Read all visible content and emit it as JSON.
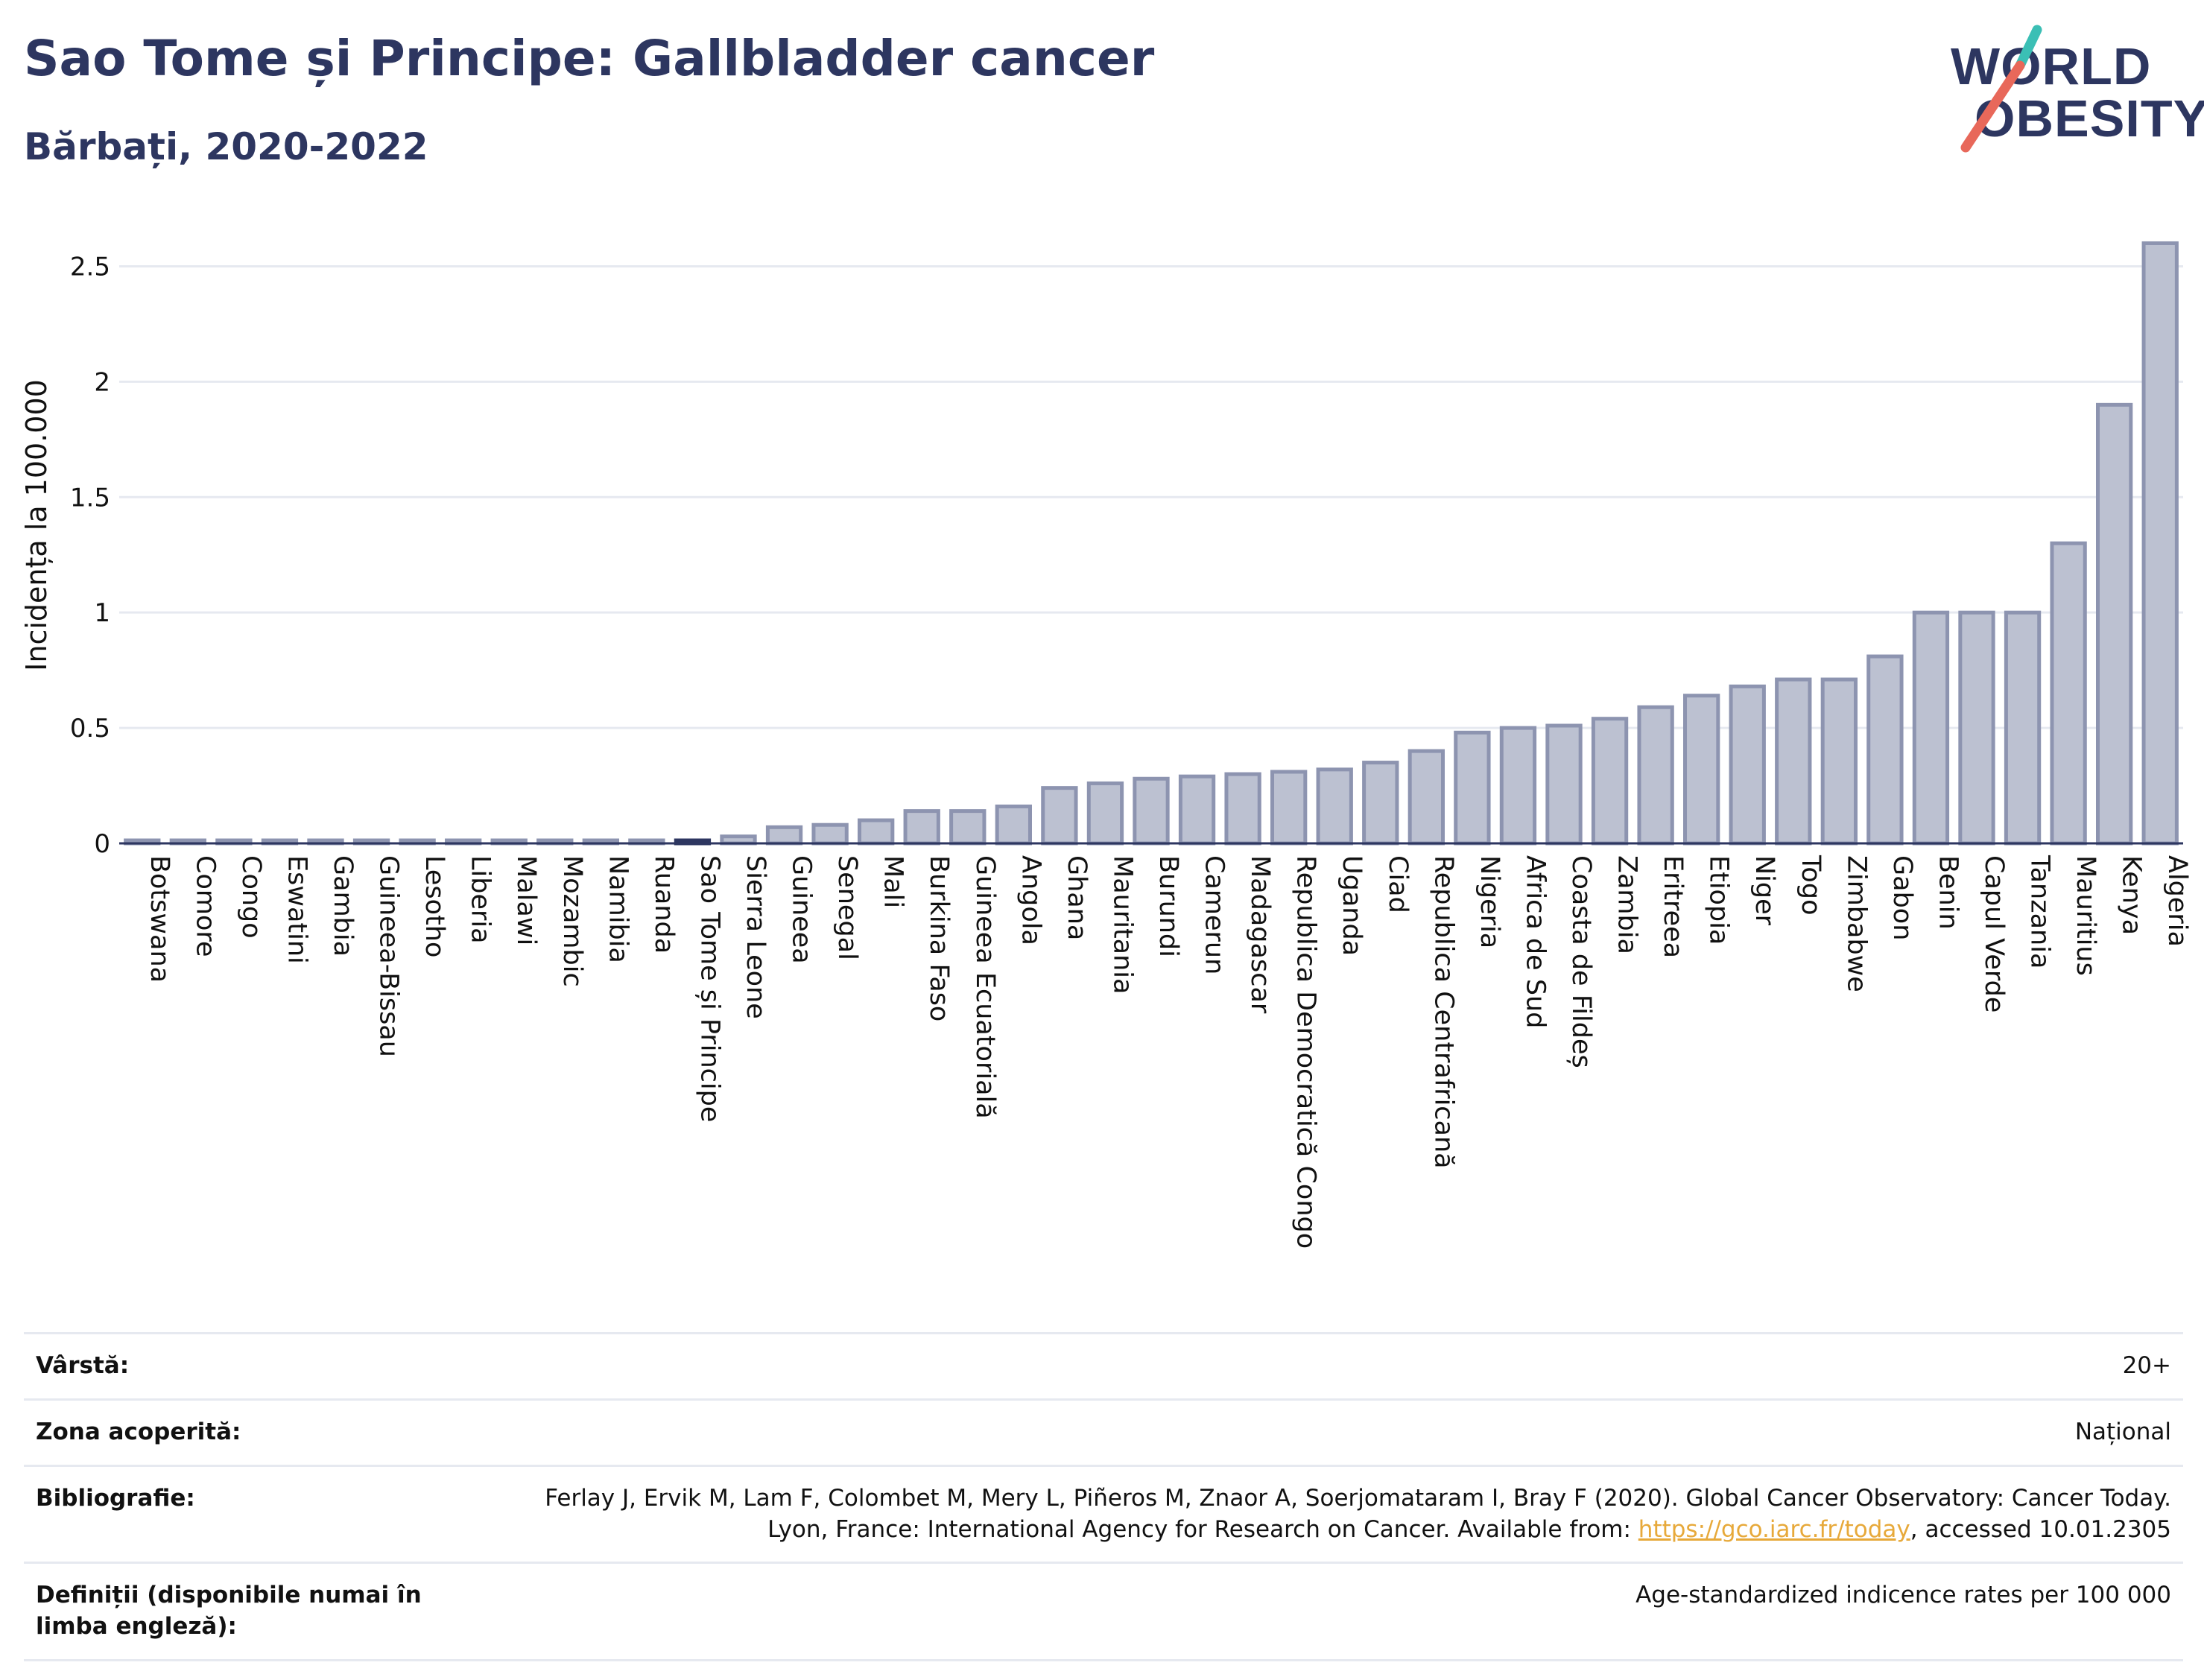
{
  "header": {
    "title": "Sao Tome și Principe: Gallbladder cancer",
    "subtitle": "Bărbați, 2020-2022"
  },
  "logo": {
    "line1": "WORLD",
    "line2": "OBESITY",
    "colors": {
      "text": "#2d3660",
      "stroke_top": "#3bbfb5",
      "stroke_bottom": "#e8685a"
    }
  },
  "colors": {
    "bar_fill": "#bcc1d1",
    "bar_stroke": "#8d94b0",
    "bar_highlight": "#2d3660",
    "grid": "#e6e9f0",
    "axis": "#2d3660",
    "title": "#2d3660"
  },
  "chart_data": {
    "type": "bar",
    "title": "Sao Tome și Principe: Gallbladder cancer",
    "subtitle": "Bărbați, 2020-2022",
    "xlabel": "",
    "ylabel": "Incidența la 100.000",
    "ylim": [
      0,
      2.75
    ],
    "yticks": [
      0,
      0.5,
      1,
      1.5,
      2,
      2.5
    ],
    "ytick_labels": [
      "0",
      "0.5",
      "1",
      "1.5",
      "2",
      "2.5"
    ],
    "grid": true,
    "legend": "none",
    "highlight": "Sao Tome și Principe",
    "categories": [
      "Botswana",
      "Comore",
      "Congo",
      "Eswatini",
      "Gambia",
      "Guineea-Bissau",
      "Lesotho",
      "Liberia",
      "Malawi",
      "Mozambic",
      "Namibia",
      "Ruanda",
      "Sao Tome și Principe",
      "Sierra Leone",
      "Guineea",
      "Senegal",
      "Mali",
      "Burkina Faso",
      "Guineea Ecuatorială",
      "Angola",
      "Ghana",
      "Mauritania",
      "Burundi",
      "Camerun",
      "Madagascar",
      "Republica Democratică Congo",
      "Uganda",
      "Ciad",
      "Republica Centrafricană",
      "Nigeria",
      "Africa de Sud",
      "Coasta de Fildeș",
      "Zambia",
      "Eritreea",
      "Etiopia",
      "Niger",
      "Togo",
      "Zimbabwe",
      "Gabon",
      "Benin",
      "Capul Verde",
      "Tanzania",
      "Mauritius",
      "Kenya",
      "Algeria"
    ],
    "values": [
      0.01,
      0.01,
      0.01,
      0.01,
      0.01,
      0.01,
      0.01,
      0.01,
      0.01,
      0.01,
      0.01,
      0.01,
      0.01,
      0.03,
      0.07,
      0.08,
      0.1,
      0.14,
      0.14,
      0.16,
      0.24,
      0.26,
      0.28,
      0.29,
      0.3,
      0.31,
      0.32,
      0.35,
      0.4,
      0.48,
      0.5,
      0.51,
      0.54,
      0.59,
      0.64,
      0.68,
      0.71,
      0.71,
      0.81,
      1.0,
      1.0,
      1.0,
      1.3,
      1.9,
      2.6
    ]
  },
  "info": [
    {
      "label": "Vârstă:",
      "value": "20+"
    },
    {
      "label": "Zona acoperită:",
      "value": "Național"
    },
    {
      "label": "Bibliografie:",
      "value_before": "Ferlay J, Ervik M, Lam F, Colombet M, Mery L, Piñeros M, Znaor A, Soerjomataram I, Bray F (2020). Global Cancer Observatory: Cancer Today. Lyon, France: International Agency for Research on Cancer. Available from: ",
      "link": "https://gco.iarc.fr/today",
      "value_after": ", accessed 10.01.2305"
    },
    {
      "label": "Definiții (disponibile numai în limba engleză):",
      "value": "Age-standardized indicence rates per 100 000"
    }
  ]
}
